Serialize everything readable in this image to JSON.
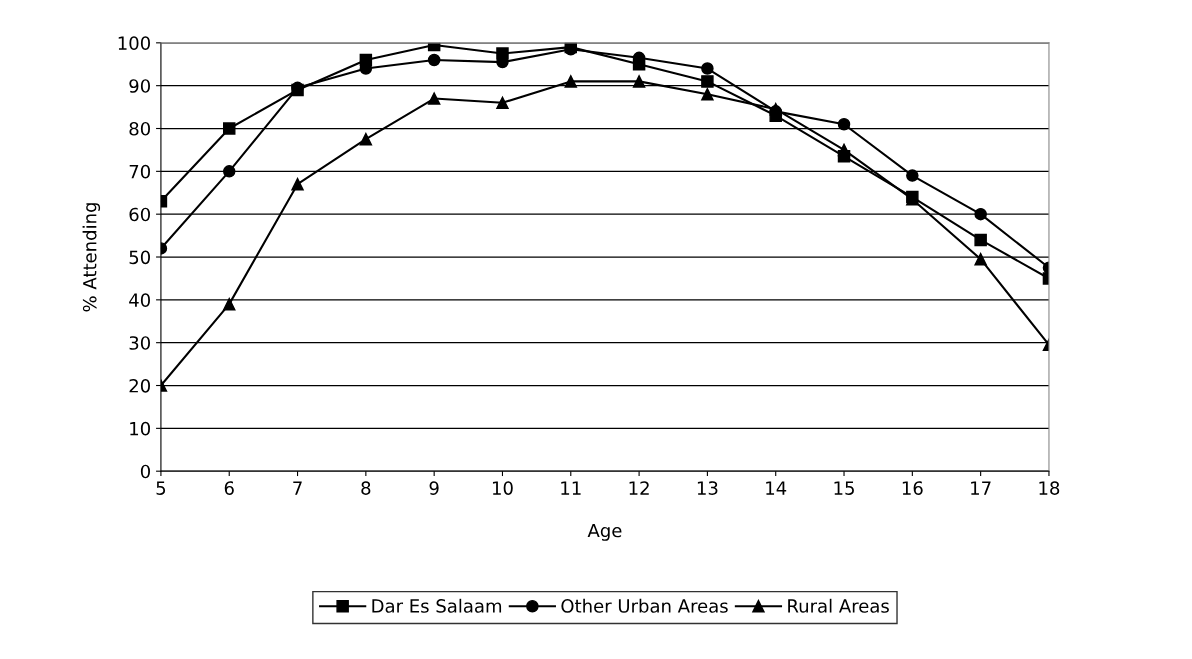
{
  "chart_data": {
    "type": "line",
    "xlabel": "Age",
    "ylabel": "% Attending",
    "x": [
      5,
      6,
      7,
      8,
      9,
      10,
      11,
      12,
      13,
      14,
      15,
      16,
      17,
      18
    ],
    "xlim": [
      5,
      18
    ],
    "xticks": [
      5,
      6,
      7,
      8,
      9,
      10,
      11,
      12,
      13,
      14,
      15,
      16,
      17,
      18
    ],
    "ylim": [
      0,
      100
    ],
    "yticks": [
      0,
      10,
      20,
      30,
      40,
      50,
      60,
      70,
      80,
      90,
      100
    ],
    "grid": "y",
    "legend": "bottom",
    "line_style": "solid",
    "series": [
      {
        "name": "Dar Es Salaam",
        "color": "#000000",
        "marker": "square",
        "values": [
          63,
          80,
          89,
          96,
          99.5,
          97.5,
          99,
          95,
          91,
          83,
          73.5,
          64,
          54,
          45
        ]
      },
      {
        "name": "Other Urban Areas",
        "color": "#000000",
        "marker": "circle",
        "values": [
          52,
          70,
          89.5,
          94,
          96,
          95.5,
          98.5,
          96.5,
          94,
          84,
          81,
          69,
          60,
          47.5
        ]
      },
      {
        "name": "Rural Areas",
        "color": "#000000",
        "marker": "triangle",
        "values": [
          20,
          39,
          67,
          77.5,
          87,
          86,
          91,
          91,
          88,
          84.5,
          75,
          63.5,
          49.5,
          29.5
        ]
      }
    ]
  }
}
